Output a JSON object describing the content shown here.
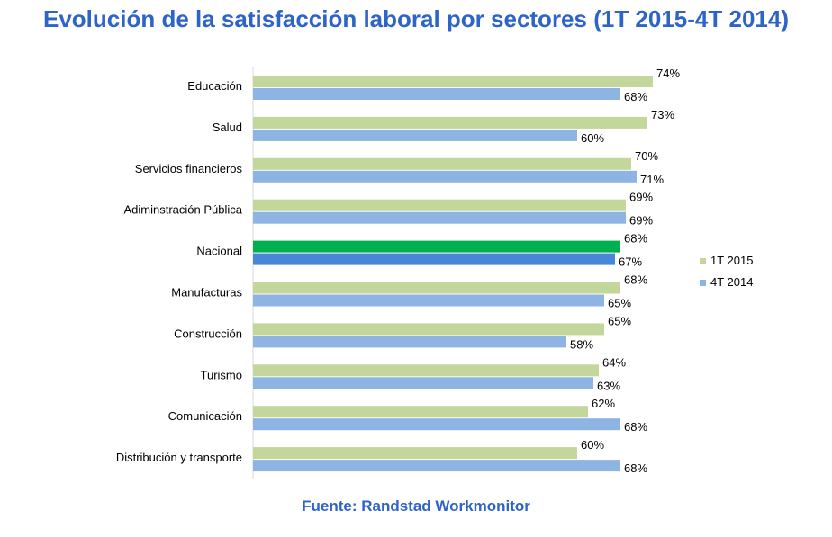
{
  "title": "Evolución de la satisfacción laboral por sectores (1T 2015-4T 2014)",
  "source": "Fuente: Randstad Workmonitor",
  "chart_data": {
    "type": "bar",
    "orientation": "horizontal",
    "categories": [
      "Educación",
      "Salud",
      "Servicios financieros",
      "Adiminstración Pública",
      "Nacional",
      "Manufacturas",
      "Construcción",
      "Turismo",
      "Comunicación",
      "Distribución y transporte"
    ],
    "series": [
      {
        "name": "1T 2015",
        "values": [
          74,
          73,
          70,
          69,
          68,
          68,
          65,
          64,
          62,
          60
        ],
        "color": "#c3d69b",
        "highlight_color": "#00b050"
      },
      {
        "name": "4T 2014",
        "values": [
          68,
          60,
          71,
          69,
          67,
          65,
          58,
          63,
          68,
          68
        ],
        "color": "#8eb4e3",
        "highlight_color": "#4a86d6"
      }
    ],
    "highlight_category": "Nacional",
    "value_suffix": "%",
    "legend_position": "right",
    "grid": false
  }
}
